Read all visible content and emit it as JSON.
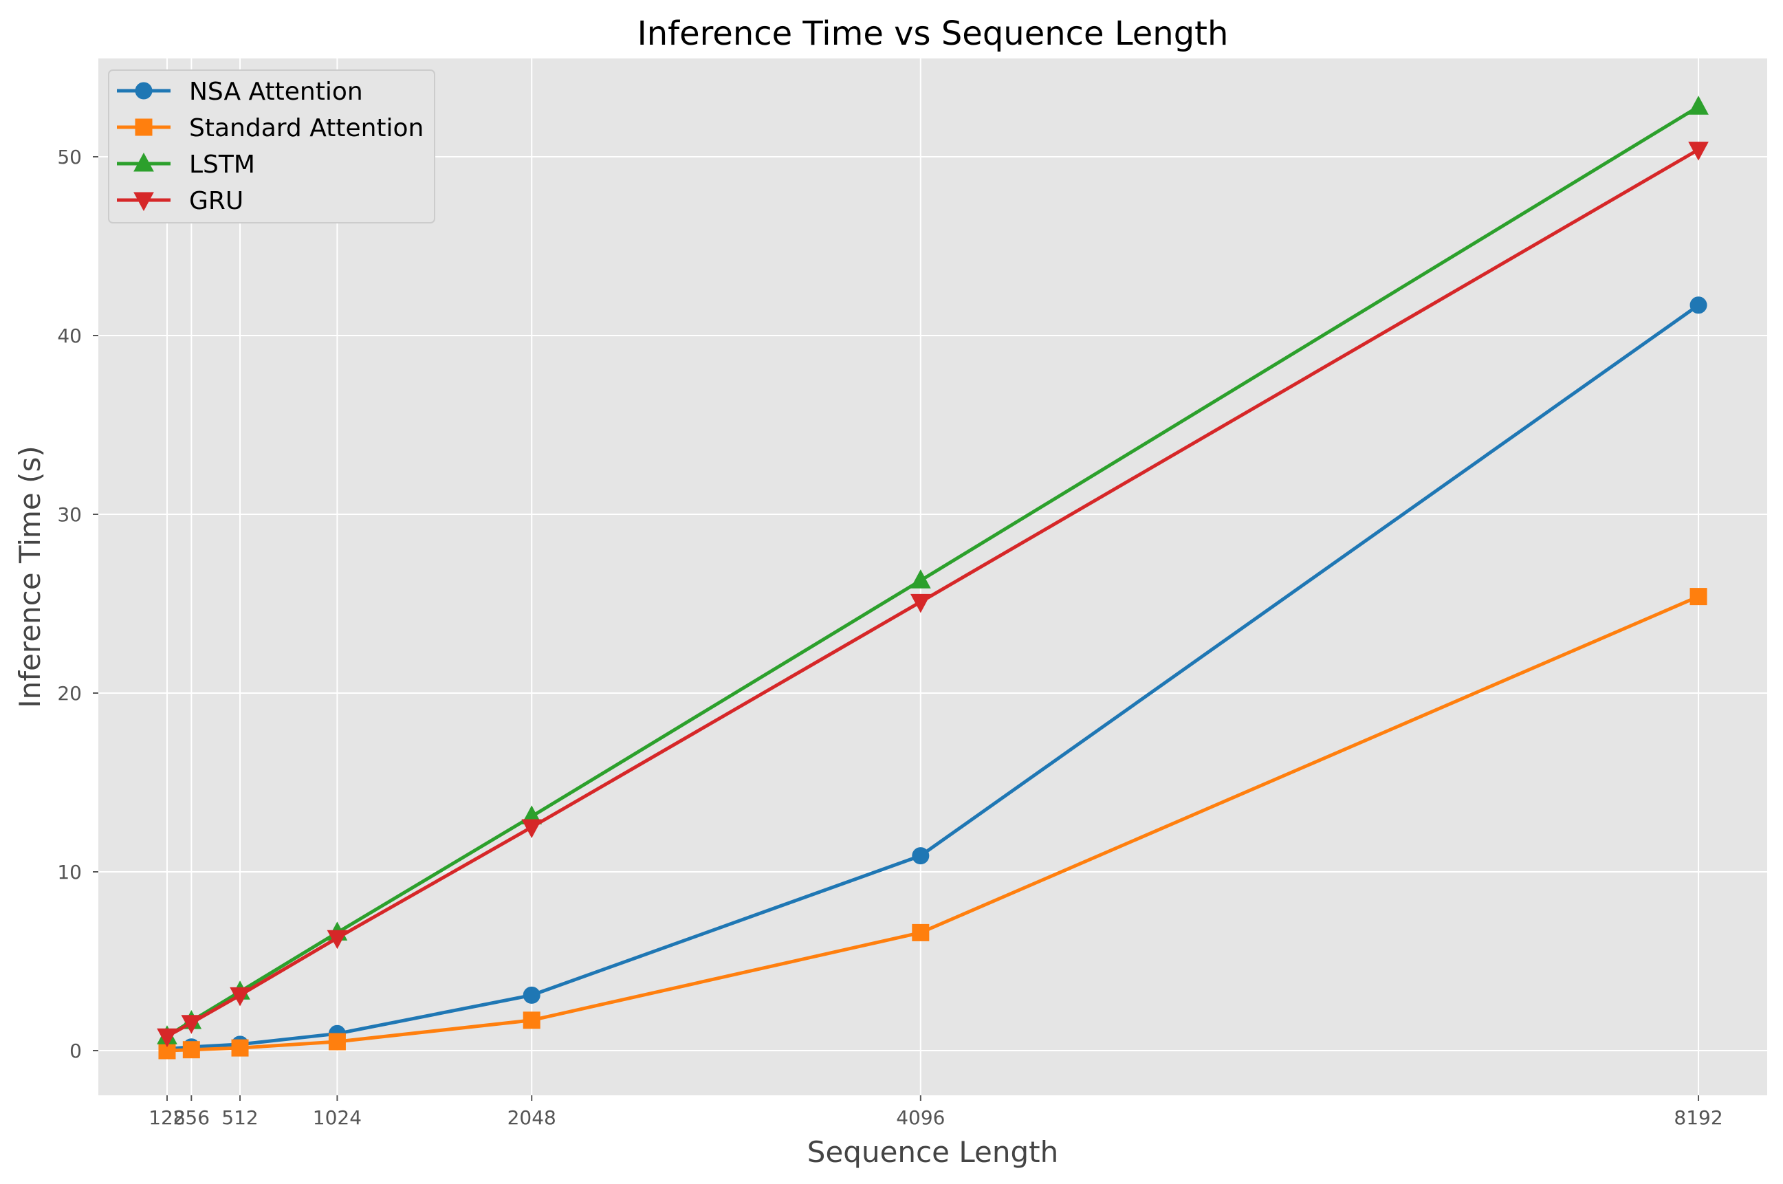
{
  "chart_data": {
    "type": "line",
    "title": "Inference Time vs Sequence Length",
    "xlabel": "Sequence Length",
    "ylabel": "Inference Time (s)",
    "x": [
      128,
      256,
      512,
      1024,
      2048,
      4096,
      8192
    ],
    "x_tick_labels": [
      "128",
      "256",
      "512",
      "1024",
      "2048",
      "4096",
      "8192"
    ],
    "xlim": [
      -234,
      8554
    ],
    "y_ticks": [
      0,
      10,
      20,
      30,
      40,
      50
    ],
    "y_tick_labels": [
      "0",
      "10",
      "20",
      "30",
      "40",
      "50"
    ],
    "ylim": [
      -2.5,
      55.5
    ],
    "grid": true,
    "legend_position": "upper-left",
    "series": [
      {
        "name": "NSA Attention",
        "color": "#1f77b4",
        "marker": "circle",
        "values": [
          0.1,
          0.2,
          0.35,
          0.95,
          3.1,
          10.9,
          41.7
        ]
      },
      {
        "name": "Standard Attention",
        "color": "#ff7f0e",
        "marker": "square",
        "values": [
          0.0,
          0.05,
          0.15,
          0.5,
          1.7,
          6.6,
          25.4
        ]
      },
      {
        "name": "LSTM",
        "color": "#2ca02c",
        "marker": "triangle-up",
        "values": [
          0.8,
          1.65,
          3.3,
          6.6,
          13.1,
          26.3,
          52.8
        ]
      },
      {
        "name": "GRU",
        "color": "#d62728",
        "marker": "triangle-down",
        "values": [
          0.8,
          1.55,
          3.1,
          6.3,
          12.5,
          25.1,
          50.4
        ]
      }
    ]
  }
}
